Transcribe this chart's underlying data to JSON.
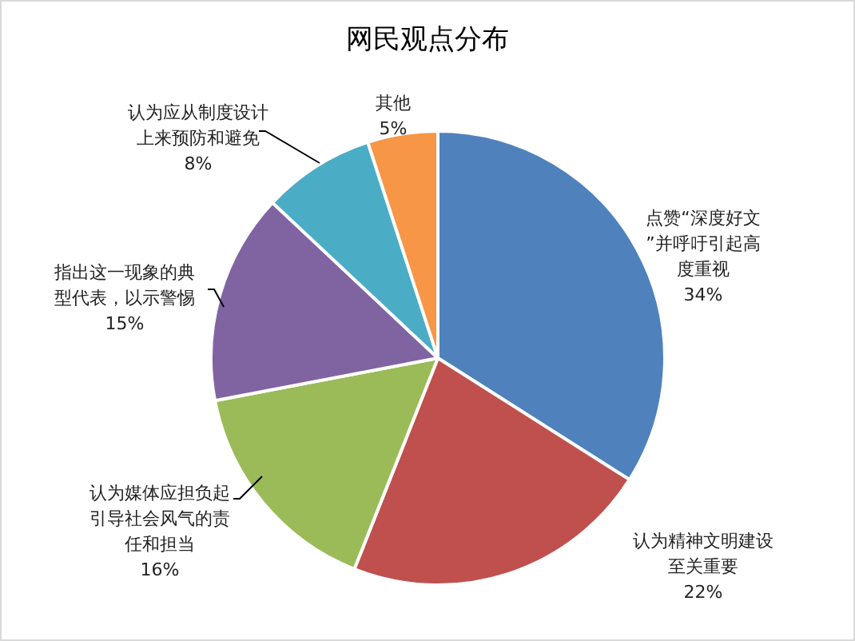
{
  "chart_data": {
    "type": "pie",
    "title": "网民观点分布",
    "categories": [
      "点赞“深度好文”并呼吁引起高度重视",
      "认为精神文明建设至关重要",
      "认为媒体应担负起引导社会风气的责任和担当",
      "指出这一现象的典型代表，以示警惕",
      "认为应从制度设计上来预防和避免",
      "其他"
    ],
    "values": [
      34,
      22,
      16,
      15,
      8,
      5
    ],
    "value_labels": [
      "34%",
      "22%",
      "16%",
      "15%",
      "8%",
      "5%"
    ],
    "colors": [
      "#4f81bd",
      "#c0504d",
      "#9bbb59",
      "#8064a2",
      "#4bacc6",
      "#f79646"
    ]
  }
}
